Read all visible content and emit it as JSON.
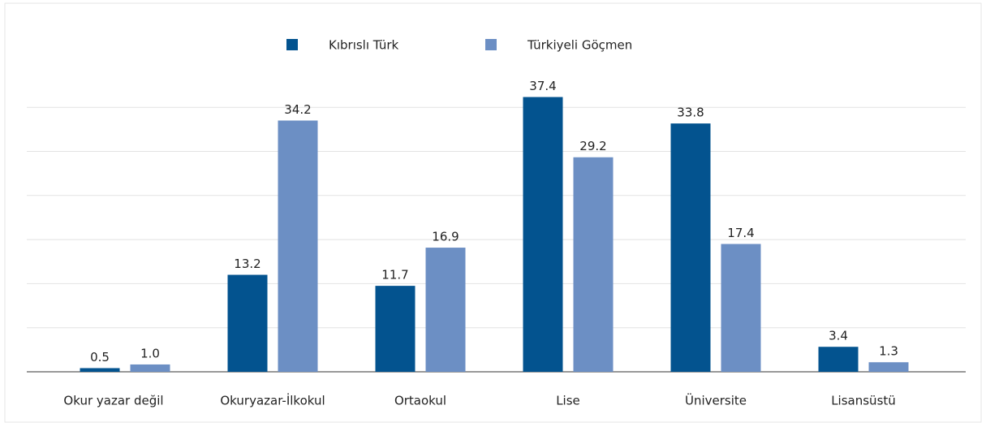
{
  "chart_data": {
    "type": "bar",
    "categories": [
      "Okur yazar değil",
      "Okuryazar-İlkokul",
      "Ortaokul",
      "Lise",
      "Üniversite",
      "Lisansüstü"
    ],
    "series": [
      {
        "name": "Kıbrıslı Türk",
        "color": "#03538f",
        "values": [
          0.5,
          13.2,
          11.7,
          37.4,
          33.8,
          3.4
        ],
        "value_labels": [
          "0.5",
          "13.2",
          "11.7",
          "37.4",
          "33.8",
          "3.4"
        ]
      },
      {
        "name": "Türkiyeli Göçmen",
        "color": "#6c8fc4",
        "values": [
          1.0,
          34.2,
          16.9,
          29.2,
          17.4,
          1.3
        ],
        "value_labels": [
          "1.0",
          "34.2",
          "16.9",
          "29.2",
          "17.4",
          "1.3"
        ]
      }
    ],
    "ylim": [
      0,
      40
    ],
    "yticks": [
      0,
      6,
      12,
      18,
      24,
      30,
      36
    ],
    "grid": true,
    "legend": "top"
  }
}
